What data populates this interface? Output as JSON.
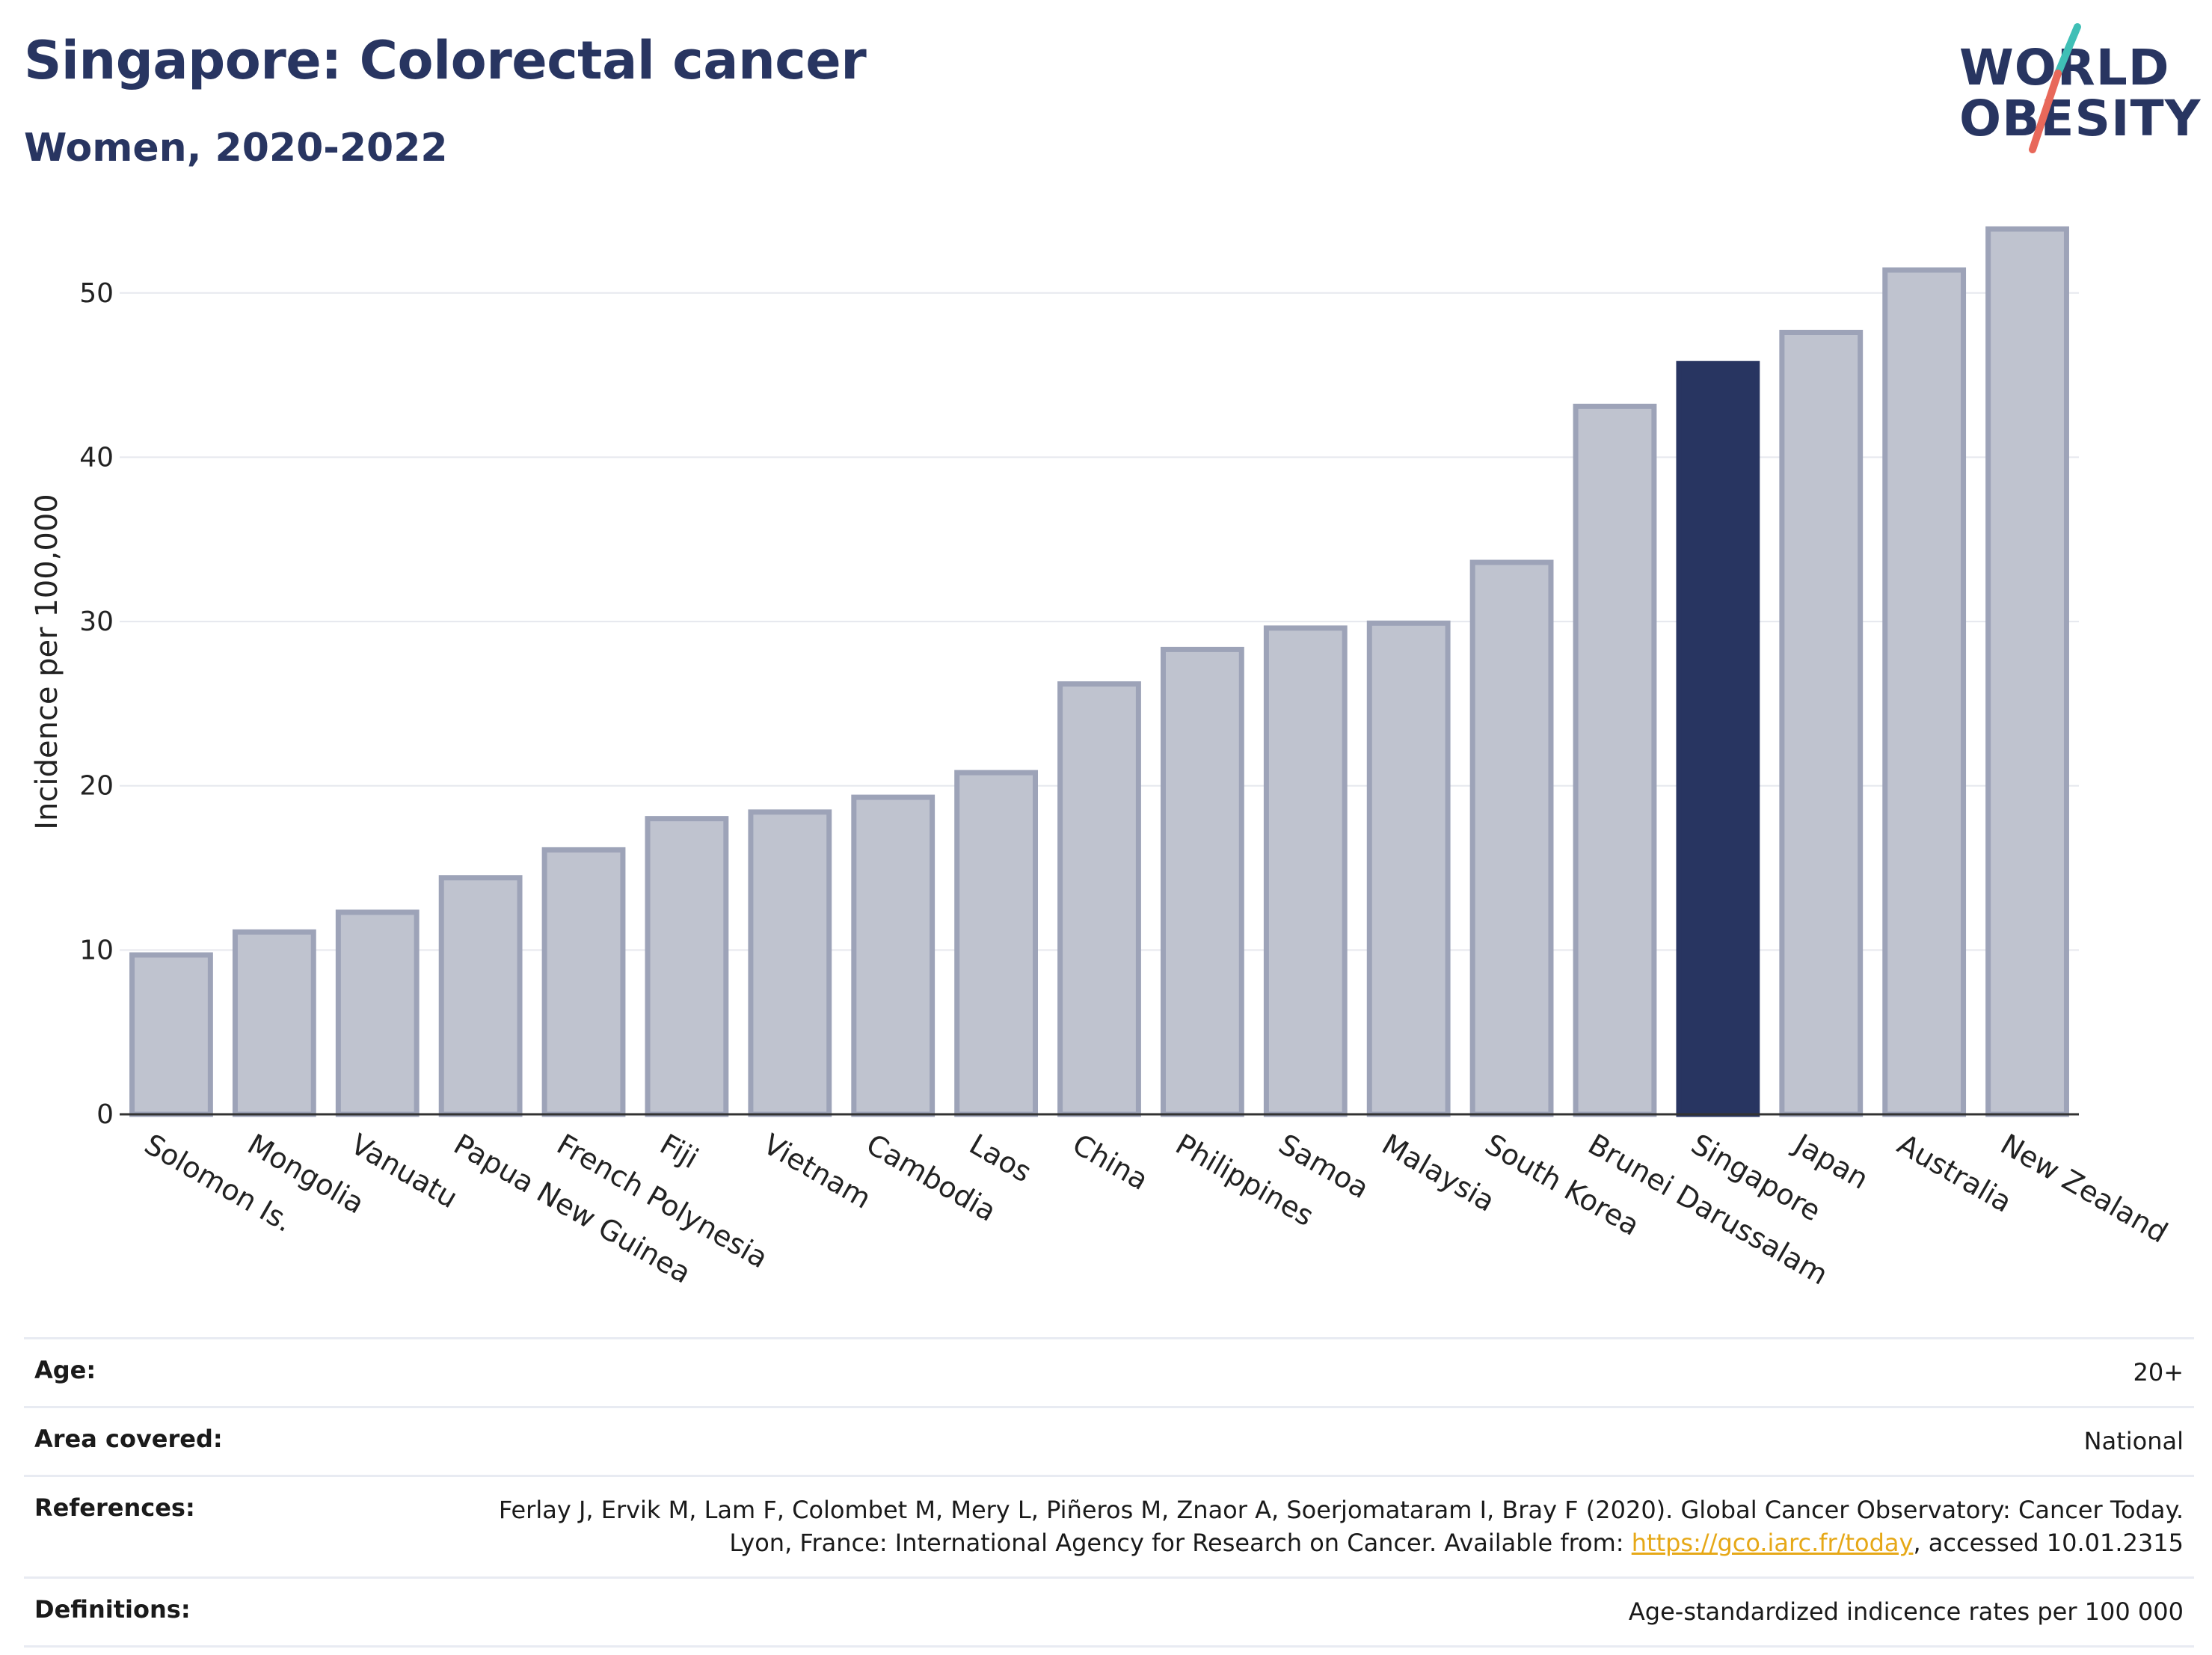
{
  "header": {
    "title": "Singapore: Colorectal cancer",
    "subtitle": "Women, 2020-2022"
  },
  "logo": {
    "line1": "WORLD",
    "line2": "OBESITY"
  },
  "chart_data": {
    "type": "bar",
    "ylabel": "Incidence per 100,000",
    "xlabel": "",
    "ylim": [
      0,
      56
    ],
    "yticks": [
      0,
      10,
      20,
      30,
      40,
      50
    ],
    "grid": true,
    "highlight": "Singapore",
    "colors": {
      "default": "#bfc3cf",
      "default_border": "#9da3b8",
      "highlight": "#283561"
    },
    "categories": [
      "Solomon Is.",
      "Mongolia",
      "Vanuatu",
      "Papua New Guinea",
      "French Polynesia",
      "Fiji",
      "Vietnam",
      "Cambodia",
      "Laos",
      "China",
      "Philippines",
      "Samoa",
      "Malaysia",
      "South Korea",
      "Brunei Darussalam",
      "Singapore",
      "Japan",
      "Australia",
      "New Zealand"
    ],
    "values": [
      9.7,
      11.1,
      12.3,
      14.4,
      16.1,
      18.0,
      18.4,
      19.3,
      20.8,
      26.2,
      28.3,
      29.6,
      29.9,
      33.6,
      43.1,
      45.7,
      47.6,
      51.4,
      53.9
    ]
  },
  "meta": {
    "age": {
      "label": "Age:",
      "value": "20+"
    },
    "area": {
      "label": "Area covered:",
      "value": "National"
    },
    "references": {
      "label": "References:",
      "text_before": "Ferlay J, Ervik M, Lam F, Colombet M, Mery L, Piñeros M, Znaor A, Soerjomataram I, Bray F (2020). Global Cancer Observatory: Cancer Today. Lyon, France: International Agency for Research on Cancer. Available from: ",
      "link": "https://gco.iarc.fr/today",
      "text_after": ", accessed 10.01.2315"
    },
    "definitions": {
      "label": "Definitions:",
      "value": "Age-standardized indicence rates per 100 000"
    }
  }
}
